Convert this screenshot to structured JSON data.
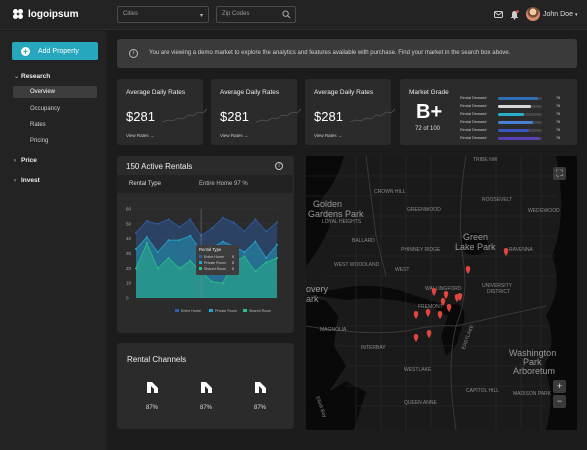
{
  "app": {
    "logo": "logoipsum",
    "user_name": "John Doe"
  },
  "topbar": {
    "city_placeholder": "Cities",
    "zip_placeholder": "Zip Codes"
  },
  "sidebar": {
    "add_property": "Add Property",
    "sections": [
      {
        "label": "Research",
        "items": [
          "Overview",
          "Occupancy",
          "Rates",
          "Pricing"
        ]
      },
      {
        "label": "Price"
      },
      {
        "label": "Invest"
      }
    ]
  },
  "banner": {
    "text": "You are viewing a demo market to explore the analytics and features available with purchase. Find your market in the search box above."
  },
  "kpis": [
    {
      "title": "Average Daily Rates",
      "value": "$281",
      "link": "View Rates →"
    },
    {
      "title": "Average Daily Rates",
      "value": "$281",
      "link": "View Rates →"
    },
    {
      "title": "Average Daily Rates",
      "value": "$281",
      "link": "View Rates →"
    }
  ],
  "market_grade": {
    "title": "Market Grade",
    "grade": "B+",
    "rank": "72 of 100",
    "rows": [
      {
        "label": "Rental Demand",
        "value": "76",
        "fill": 0.9,
        "color": "#2f6fb5"
      },
      {
        "label": "Rental Demand",
        "value": "76",
        "fill": 0.75,
        "color": "#d8d8d8"
      },
      {
        "label": "Rental Demand",
        "value": "76",
        "fill": 0.6,
        "color": "#27b1c9"
      },
      {
        "label": "Rental Demand",
        "value": "76",
        "fill": 0.8,
        "color": "#4a7fd6"
      },
      {
        "label": "Rental Demand",
        "value": "76",
        "fill": 0.7,
        "color": "#3b56c2"
      },
      {
        "label": "Rental Demand",
        "value": "76",
        "fill": 0.95,
        "color": "#5a3fb5"
      }
    ]
  },
  "rentals": {
    "title": "150 Active Rentals",
    "type_label": "Rental Type",
    "type_value": "Entire Home 97 %"
  },
  "chart_data": {
    "type": "area",
    "x": [
      1,
      2,
      3,
      4,
      5,
      6,
      7,
      8,
      9,
      10,
      11,
      12,
      13,
      14
    ],
    "ylim": [
      0,
      60
    ],
    "yticks": [
      "0",
      "10",
      "20",
      "30",
      "40",
      "50",
      "60"
    ],
    "series": [
      {
        "name": "Entire Home",
        "color": "#2f5fa8",
        "values": [
          44,
          52,
          50,
          53,
          48,
          53,
          42,
          47,
          54,
          51,
          45,
          53,
          45,
          51
        ]
      },
      {
        "name": "Private Room",
        "color": "#22a6c9",
        "values": [
          33,
          41,
          31,
          39,
          39,
          42,
          32,
          34,
          38,
          35,
          31,
          38,
          27,
          36
        ]
      },
      {
        "name": "Shared Room",
        "color": "#2bbf8a",
        "values": [
          20,
          37,
          20,
          27,
          20,
          25,
          18,
          11,
          10,
          24,
          28,
          18,
          24,
          27
        ]
      }
    ],
    "tooltip": {
      "title": "Rental Type",
      "rows": [
        {
          "label": "Entire Home",
          "value": "$"
        },
        {
          "label": "Private Room",
          "value": "$"
        },
        {
          "label": "Shared Room",
          "value": "$"
        }
      ]
    }
  },
  "channels": {
    "title": "Rental Channels",
    "items": [
      {
        "value": "87%"
      },
      {
        "value": "87%"
      },
      {
        "value": "87%"
      }
    ]
  },
  "map": {
    "labels": [
      "TRIBE NW",
      "CROWN HILL",
      "GREENWOOD",
      "Golden",
      "Gardens Park",
      "ROOSEVELT",
      "LOYAL HEIGHTS",
      "BALLARD",
      "PHINNEY RIDGE",
      "Green",
      "Lake Park",
      "RAVENNA",
      "WEDGWOOD",
      "WEST WOODLAND",
      "WEST",
      "WALLINGFORD",
      "UNIVERSITY",
      "DISTRICT",
      "overy",
      "ark",
      "FREMONT",
      "MAGNOLIA",
      "INTERBAY",
      "WESTLAKE",
      "EASTLAKE",
      "Washington",
      "Park",
      "Arboretum",
      "QUEEN ANNE",
      "CAPITOL HILL",
      "MADISON PARK",
      "Elliott Bay"
    ]
  }
}
